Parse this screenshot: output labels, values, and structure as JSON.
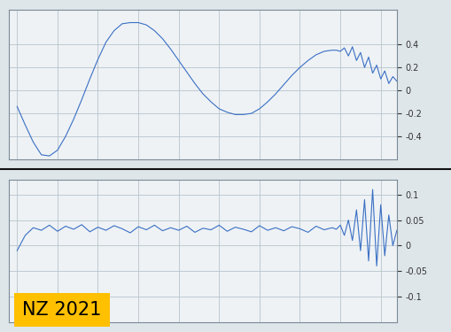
{
  "chart_data": [
    {
      "type": "line",
      "x": [
        0,
        1,
        2,
        3,
        4,
        5,
        6,
        7,
        8,
        9,
        10,
        11,
        12,
        13,
        14,
        15,
        16,
        17,
        18,
        19,
        20,
        21,
        22,
        23,
        24,
        25,
        26,
        27,
        28,
        29,
        30,
        31,
        32,
        33,
        34,
        35,
        36,
        37,
        38,
        39,
        39.5,
        40,
        40.5,
        41,
        41.5,
        42,
        42.5,
        43,
        43.5,
        44,
        44.5,
        45,
        45.5,
        46,
        46.5,
        47
      ],
      "series": [
        {
          "color": "#3a6fc4",
          "values": [
            -0.14,
            -0.3,
            -0.45,
            -0.56,
            -0.57,
            -0.52,
            -0.4,
            -0.25,
            -0.08,
            0.1,
            0.27,
            0.42,
            0.52,
            0.58,
            0.59,
            0.59,
            0.57,
            0.52,
            0.45,
            0.36,
            0.26,
            0.16,
            0.06,
            -0.03,
            -0.1,
            -0.16,
            -0.19,
            -0.21,
            -0.21,
            -0.2,
            -0.16,
            -0.1,
            -0.03,
            0.05,
            0.13,
            0.2,
            0.26,
            0.31,
            0.34,
            0.35,
            0.35,
            0.34,
            0.37,
            0.3,
            0.38,
            0.26,
            0.33,
            0.2,
            0.29,
            0.15,
            0.22,
            0.1,
            0.17,
            0.06,
            0.12,
            0.08
          ]
        }
      ],
      "xlim": [
        -1,
        47
      ],
      "xticks": [
        0,
        5,
        10,
        15,
        20,
        25,
        30,
        35,
        40,
        45
      ],
      "ylim": [
        -0.6,
        0.7
      ],
      "yticks": [
        -0.4,
        -0.2,
        0,
        0.2,
        0.4
      ],
      "grid": true,
      "tick_labels": "y"
    },
    {
      "type": "line",
      "x": [
        0,
        1,
        2,
        3,
        4,
        5,
        6,
        7,
        8,
        9,
        10,
        11,
        12,
        13,
        14,
        15,
        16,
        17,
        18,
        19,
        20,
        21,
        22,
        23,
        24,
        25,
        26,
        27,
        28,
        29,
        30,
        31,
        32,
        33,
        34,
        35,
        36,
        37,
        38,
        39,
        39.5,
        40,
        40.5,
        41,
        41.5,
        42,
        42.5,
        43,
        43.5,
        44,
        44.5,
        45,
        45.5,
        46,
        46.5,
        47
      ],
      "series": [
        {
          "color": "#3a6fc4",
          "values": [
            -0.01,
            0.02,
            0.035,
            0.03,
            0.04,
            0.028,
            0.038,
            0.032,
            0.041,
            0.027,
            0.036,
            0.03,
            0.039,
            0.033,
            0.025,
            0.037,
            0.031,
            0.04,
            0.029,
            0.035,
            0.03,
            0.038,
            0.026,
            0.034,
            0.031,
            0.04,
            0.028,
            0.036,
            0.032,
            0.027,
            0.039,
            0.03,
            0.035,
            0.029,
            0.037,
            0.033,
            0.026,
            0.038,
            0.031,
            0.035,
            0.032,
            0.04,
            0.02,
            0.05,
            0.01,
            0.07,
            -0.01,
            0.09,
            -0.03,
            0.11,
            -0.04,
            0.08,
            -0.02,
            0.06,
            0.0,
            0.03
          ]
        }
      ],
      "xlim": [
        -1,
        47
      ],
      "xticks": [
        0,
        5,
        10,
        15,
        20,
        25,
        30,
        35,
        40,
        45
      ],
      "ylim": [
        -0.15,
        0.13
      ],
      "yticks": [
        -0.1,
        -0.05,
        0,
        0.05,
        0.1
      ],
      "grid": true,
      "tick_labels": "y",
      "annotations": [
        "NZ 2021"
      ]
    }
  ]
}
